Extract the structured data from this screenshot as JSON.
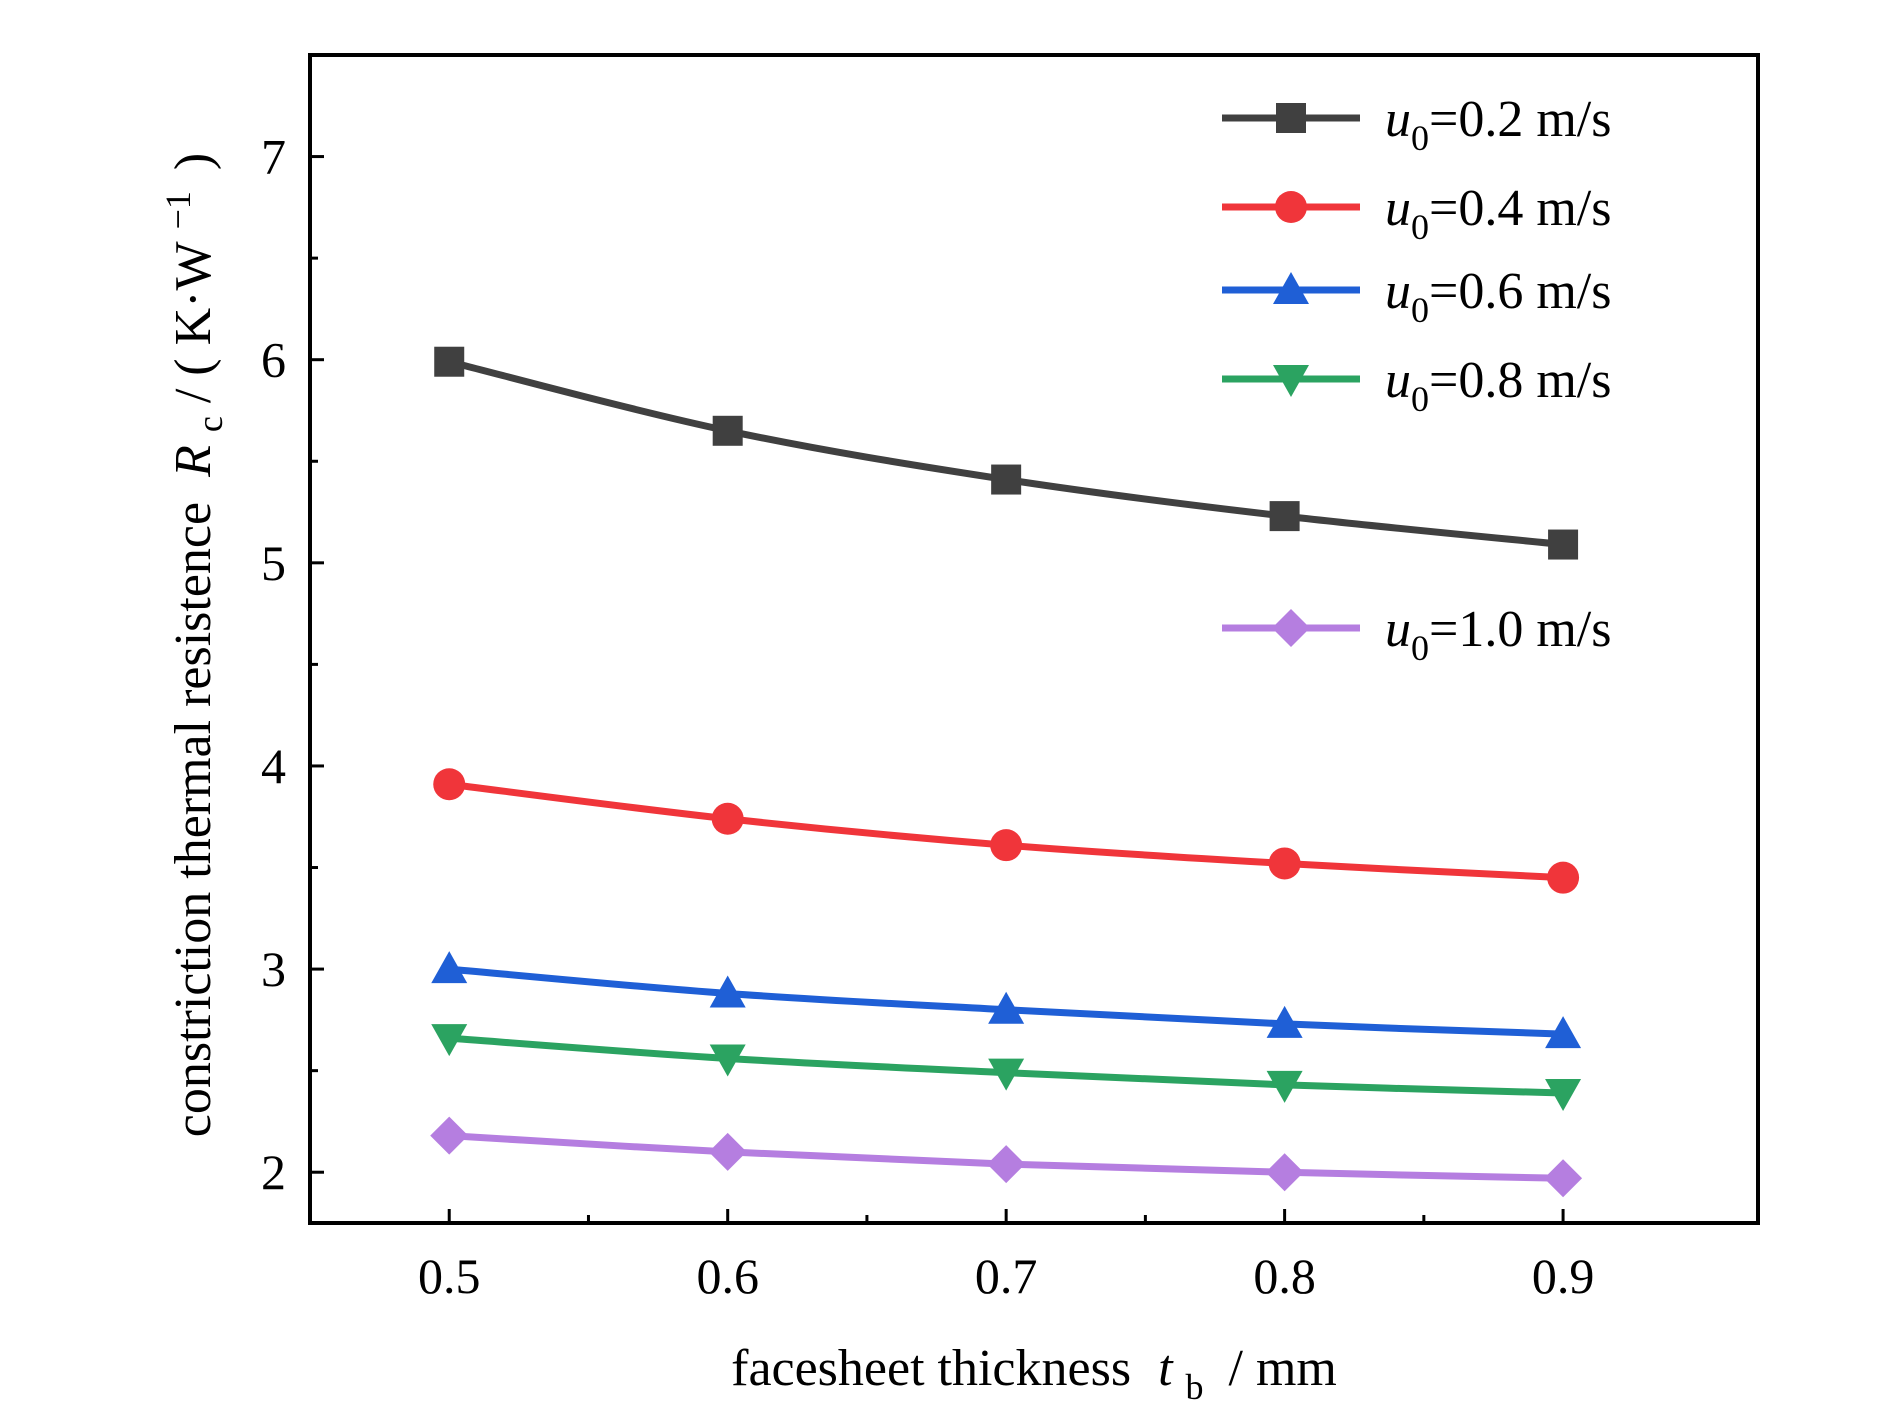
{
  "chart_data": {
    "type": "line",
    "x": [
      0.5,
      0.6,
      0.7,
      0.8,
      0.9
    ],
    "x_tick_labels": [
      "0.5",
      "0.6",
      "0.7",
      "0.8",
      "0.9"
    ],
    "y_tick_labels": [
      "2",
      "3",
      "4",
      "5",
      "6",
      "7"
    ],
    "xlim": [
      0.45,
      0.97
    ],
    "ylim": [
      1.75,
      7.5
    ],
    "xlabel": {
      "main": "facesheet thickness",
      "var": "t",
      "sub": "b",
      "unit": "/ mm"
    },
    "ylabel": {
      "main": "constriction thermal resistence",
      "var": "R",
      "sub": "c",
      "unit_open": "/ ( K·W",
      "unit_sup": "−1",
      "unit_close": ")"
    },
    "legend_position": "top-right",
    "grid": false,
    "series": [
      {
        "name": "u0=0.2 m/s",
        "legend": {
          "var": "u",
          "sub": "0",
          "text": "=0.2 m/s"
        },
        "color": "#404040",
        "marker": "square",
        "values": [
          5.99,
          5.65,
          5.41,
          5.23,
          5.09
        ]
      },
      {
        "name": "u0=0.4 m/s",
        "legend": {
          "var": "u",
          "sub": "0",
          "text": "=0.4 m/s"
        },
        "color": "#f0353a",
        "marker": "circle",
        "values": [
          3.91,
          3.74,
          3.61,
          3.52,
          3.45
        ]
      },
      {
        "name": "u0=0.6 m/s",
        "legend": {
          "var": "u",
          "sub": "0",
          "text": "=0.6 m/s"
        },
        "color": "#1f5fd6",
        "marker": "triangle-up",
        "values": [
          3.0,
          2.88,
          2.8,
          2.73,
          2.68
        ]
      },
      {
        "name": "u0=0.8 m/s",
        "legend": {
          "var": "u",
          "sub": "0",
          "text": "=0.8 m/s"
        },
        "color": "#2ba361",
        "marker": "triangle-down",
        "values": [
          2.66,
          2.56,
          2.49,
          2.43,
          2.39
        ]
      },
      {
        "name": "u0=1.0 m/s",
        "legend": {
          "var": "u",
          "sub": "0",
          "text": "=1.0 m/s"
        },
        "color": "#b57ee0",
        "marker": "diamond",
        "values": [
          2.18,
          2.1,
          2.04,
          2.0,
          1.97
        ]
      }
    ]
  }
}
